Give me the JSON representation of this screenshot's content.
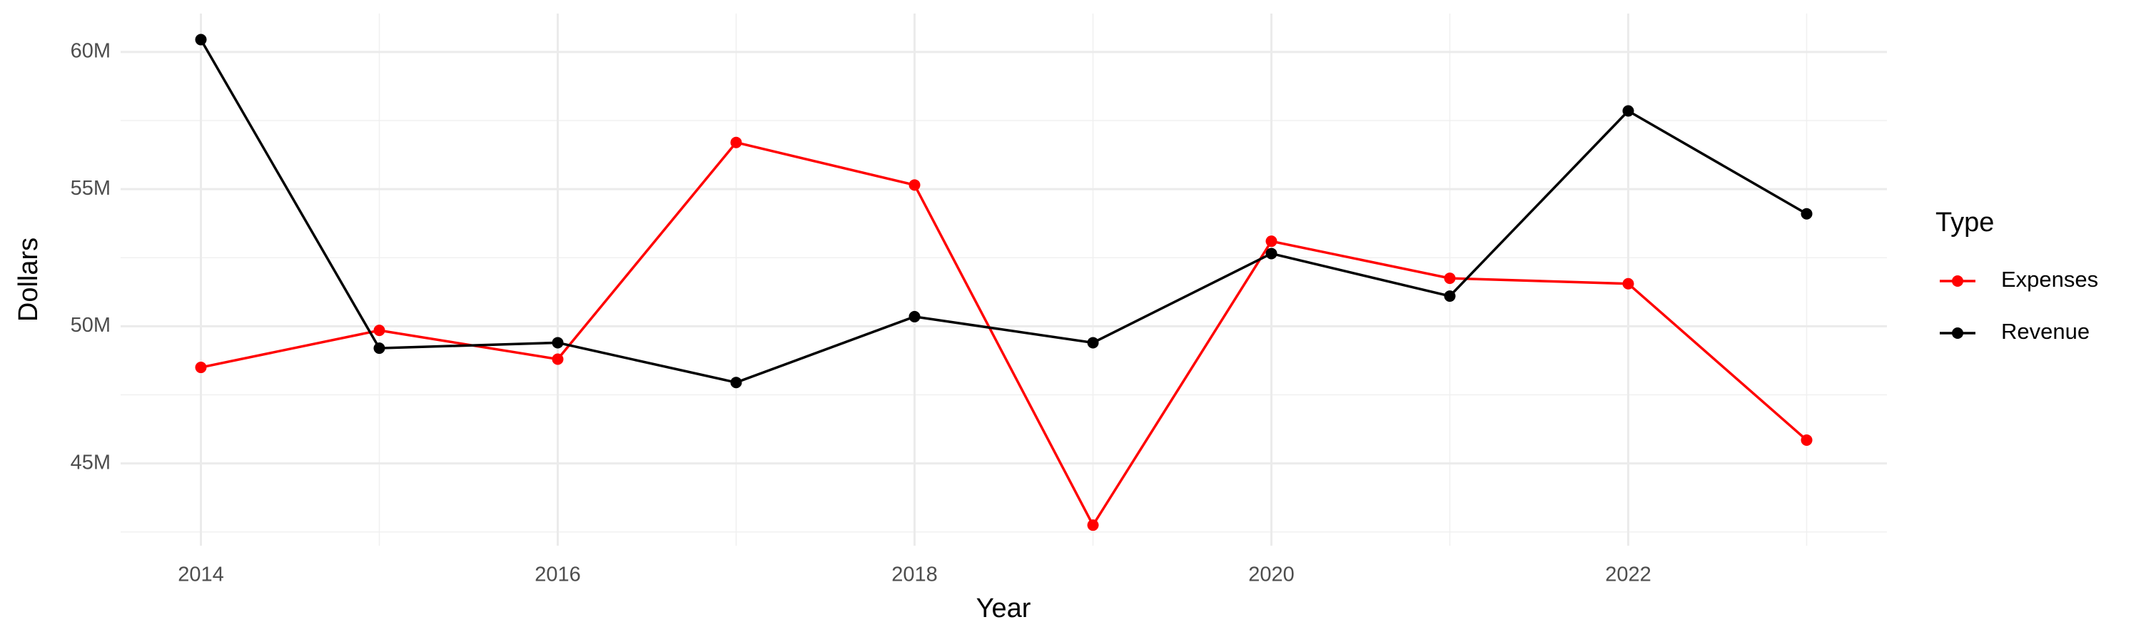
{
  "chart_data": {
    "type": "line",
    "x_label": "Year",
    "y_label": "Dollars",
    "legend_title": "Type",
    "x": [
      2014,
      2015,
      2016,
      2017,
      2018,
      2019,
      2020,
      2021,
      2022,
      2023
    ],
    "series": [
      {
        "name": "Expenses",
        "color": "#ff0000",
        "values": [
          48500000,
          49850000,
          48800000,
          56700000,
          55150000,
          42750000,
          53100000,
          51750000,
          51550000,
          45850000
        ]
      },
      {
        "name": "Revenue",
        "color": "#000000",
        "values": [
          60450000,
          49200000,
          49400000,
          47950000,
          50350000,
          49400000,
          52650000,
          51100000,
          57850000,
          54100000
        ]
      }
    ],
    "xlim": [
      2013.55,
      2023.45
    ],
    "xticks": [
      2014,
      2016,
      2018,
      2020,
      2022
    ],
    "ylim": [
      42000000,
      61400000
    ],
    "yticks": [
      {
        "value": 45000000,
        "label": "45M"
      },
      {
        "value": 50000000,
        "label": "50M"
      },
      {
        "value": 55000000,
        "label": "55M"
      },
      {
        "value": 60000000,
        "label": "60M"
      }
    ],
    "grid": true,
    "legend": "right"
  }
}
